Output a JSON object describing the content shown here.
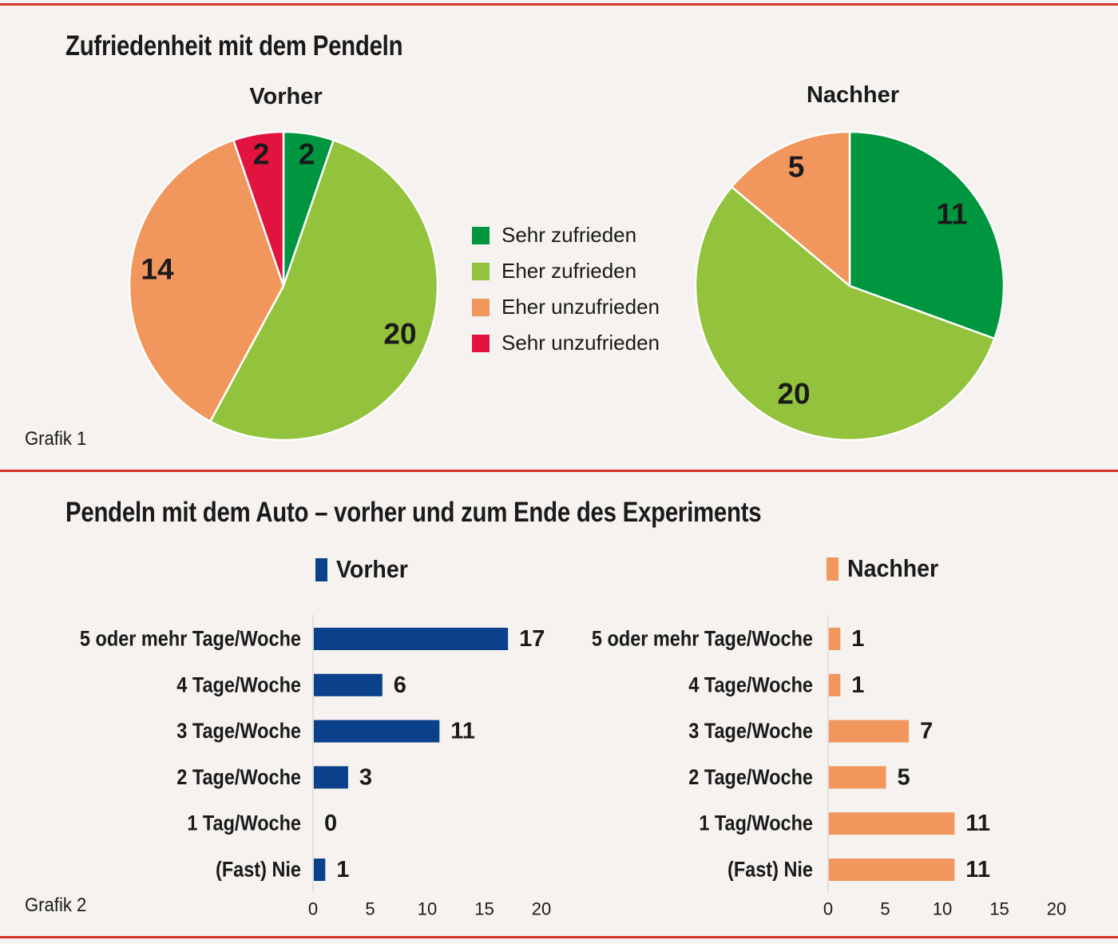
{
  "colors": {
    "rule": "#d9312b",
    "sehr_zufrieden": "#00963f",
    "eher_zufrieden": "#93c23c",
    "eher_unzufrieden": "#f1965c",
    "sehr_unzufrieden": "#e2133f",
    "vorher_bar": "#0b408a",
    "nachher_bar": "#f1965c"
  },
  "grafik1": {
    "title": "Zufriedenheit mit dem Pendeln",
    "caption": "Grafik 1"
  },
  "grafik2": {
    "title": "Pendeln mit dem Auto – vorher und zum Ende des Experiments",
    "caption": "Grafik 2"
  },
  "legend": [
    {
      "label": "Sehr zufrieden",
      "color": "#00963f"
    },
    {
      "label": "Eher zufrieden",
      "color": "#93c23c"
    },
    {
      "label": "Eher unzufrieden",
      "color": "#f1965c"
    },
    {
      "label": "Sehr unzufrieden",
      "color": "#e2133f"
    }
  ],
  "chart_data": [
    {
      "type": "pie",
      "title": "Vorher",
      "labels": [
        "Sehr zufrieden",
        "Eher zufrieden",
        "Eher unzufrieden",
        "Sehr unzufrieden"
      ],
      "values": [
        2,
        20,
        14,
        2
      ],
      "colors": [
        "#00963f",
        "#93c23c",
        "#f1965c",
        "#e2133f"
      ],
      "start": "top",
      "direction": "clockwise",
      "legend": "center"
    },
    {
      "type": "pie",
      "title": "Nachher",
      "labels": [
        "Sehr zufrieden",
        "Eher zufrieden",
        "Eher unzufrieden"
      ],
      "values": [
        11,
        20,
        5
      ],
      "colors": [
        "#00963f",
        "#93c23c",
        "#f1965c"
      ],
      "start": "top",
      "direction": "clockwise"
    },
    {
      "type": "bar",
      "orientation": "horizontal",
      "title": "Vorher",
      "categories": [
        "5 oder mehr Tage/Woche",
        "4 Tage/Woche",
        "3 Tage/Woche",
        "2 Tage/Woche",
        "1 Tag/Woche",
        "(Fast) Nie"
      ],
      "values": [
        17,
        6,
        11,
        3,
        0,
        1
      ],
      "color": "#0b408a",
      "xlim": [
        0,
        20
      ],
      "xticks": [
        0,
        5,
        10,
        15,
        20
      ],
      "grid": false
    },
    {
      "type": "bar",
      "orientation": "horizontal",
      "title": "Nachher",
      "categories": [
        "5 oder mehr Tage/Woche",
        "4 Tage/Woche",
        "3 Tage/Woche",
        "2 Tage/Woche",
        "1 Tag/Woche",
        "(Fast) Nie"
      ],
      "values": [
        1,
        1,
        7,
        5,
        11,
        11
      ],
      "color": "#f1965c",
      "xlim": [
        0,
        20
      ],
      "xticks": [
        0,
        5,
        10,
        15,
        20
      ],
      "grid": false
    }
  ]
}
